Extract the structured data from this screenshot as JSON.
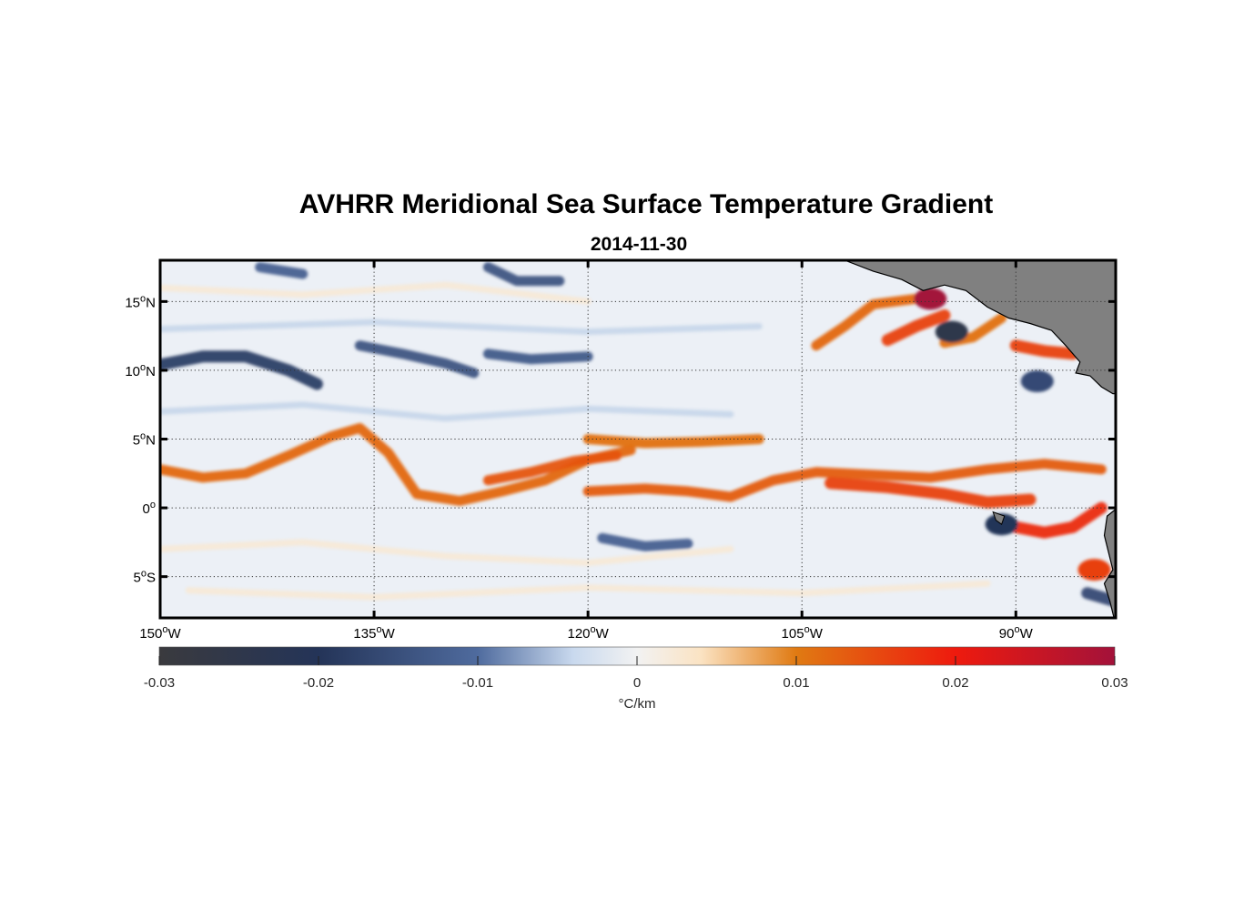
{
  "title": "AVHRR Meridional Sea Surface Temperature Gradient",
  "subtitle": "2014-11-30",
  "map": {
    "lon_range": [
      -150,
      -83
    ],
    "lat_range": [
      -8,
      18
    ],
    "grid": true,
    "land_color": "#808080",
    "lon_ticks": [
      {
        "value": -150,
        "num": "150",
        "hemi": "W"
      },
      {
        "value": -135,
        "num": "135",
        "hemi": "W"
      },
      {
        "value": -120,
        "num": "120",
        "hemi": "W"
      },
      {
        "value": -105,
        "num": "105",
        "hemi": "W"
      },
      {
        "value": -90,
        "num": "90",
        "hemi": "W"
      }
    ],
    "lat_ticks": [
      {
        "value": 15,
        "num": "15",
        "hemi": "N"
      },
      {
        "value": 10,
        "num": "10",
        "hemi": "N"
      },
      {
        "value": 5,
        "num": "5",
        "hemi": "N"
      },
      {
        "value": 0,
        "num": "0",
        "hemi": ""
      },
      {
        "value": -5,
        "num": "5",
        "hemi": "S"
      }
    ],
    "degree_symbol": "o"
  },
  "colorbar": {
    "range": [
      -0.03,
      0.03
    ],
    "ticks": [
      {
        "value": -0.03,
        "label": "-0.03"
      },
      {
        "value": -0.02,
        "label": "-0.02"
      },
      {
        "value": -0.01,
        "label": "-0.01"
      },
      {
        "value": 0,
        "label": "0"
      },
      {
        "value": 0.01,
        "label": "0.01"
      },
      {
        "value": 0.02,
        "label": "0.02"
      },
      {
        "value": 0.03,
        "label": "0.03"
      }
    ],
    "unit_label": "°C/km",
    "colormap": [
      {
        "v": -0.03,
        "c": "#3a3a3e"
      },
      {
        "v": -0.02,
        "c": "#243458"
      },
      {
        "v": -0.01,
        "c": "#4f6b9e"
      },
      {
        "v": -0.004,
        "c": "#c9d9ee"
      },
      {
        "v": 0,
        "c": "#f2f2f2"
      },
      {
        "v": 0.004,
        "c": "#fbe3c3"
      },
      {
        "v": 0.01,
        "c": "#e07a12"
      },
      {
        "v": 0.02,
        "c": "#ee1a0e"
      },
      {
        "v": 0.03,
        "c": "#a3123a"
      }
    ]
  },
  "chart_data": {
    "type": "heatmap",
    "variable": "meridional SST gradient",
    "units": "°C/km",
    "features": [
      {
        "kind": "positive_band",
        "value": 0.012,
        "path": [
          [
            -150,
            2.8
          ],
          [
            -147,
            2.2
          ],
          [
            -144,
            2.5
          ],
          [
            -141,
            3.8
          ],
          [
            -138,
            5.2
          ],
          [
            -136,
            5.8
          ],
          [
            -134,
            4.0
          ],
          [
            -132,
            1.0
          ],
          [
            -129,
            0.5
          ],
          [
            -126,
            1.2
          ],
          [
            -123,
            2.0
          ],
          [
            -120,
            3.5
          ],
          [
            -117,
            4.2
          ]
        ]
      },
      {
        "kind": "positive_band",
        "value": 0.014,
        "path": [
          [
            -127,
            2.0
          ],
          [
            -124,
            2.6
          ],
          [
            -121,
            3.4
          ],
          [
            -118,
            3.8
          ]
        ]
      },
      {
        "kind": "positive_band",
        "value": 0.013,
        "path": [
          [
            -120,
            1.2
          ],
          [
            -116,
            1.4
          ],
          [
            -113,
            1.2
          ],
          [
            -110,
            0.8
          ],
          [
            -107,
            2.0
          ],
          [
            -104,
            2.6
          ],
          [
            -100,
            2.4
          ],
          [
            -96,
            2.2
          ],
          [
            -92,
            2.8
          ],
          [
            -88,
            3.2
          ],
          [
            -84,
            2.8
          ]
        ]
      },
      {
        "kind": "positive_band",
        "value": 0.016,
        "path": [
          [
            -103,
            1.8
          ],
          [
            -99,
            1.5
          ],
          [
            -95,
            1.0
          ],
          [
            -92,
            0.4
          ],
          [
            -89,
            0.6
          ]
        ]
      },
      {
        "kind": "positive_band",
        "value": 0.018,
        "path": [
          [
            -90,
            -1.4
          ],
          [
            -88,
            -1.8
          ],
          [
            -86,
            -1.4
          ],
          [
            -84,
            0.0
          ]
        ]
      },
      {
        "kind": "positive_band",
        "value": 0.011,
        "path": [
          [
            -120,
            5.0
          ],
          [
            -116,
            4.7
          ],
          [
            -112,
            4.8
          ],
          [
            -108,
            5.0
          ]
        ]
      },
      {
        "kind": "positive_band",
        "value": 0.012,
        "path": [
          [
            -104,
            11.8
          ],
          [
            -102,
            13.2
          ],
          [
            -100,
            14.8
          ],
          [
            -97,
            15.2
          ]
        ]
      },
      {
        "kind": "positive_band",
        "value": 0.016,
        "path": [
          [
            -99,
            12.2
          ],
          [
            -97,
            13.2
          ],
          [
            -95,
            14.0
          ]
        ]
      },
      {
        "kind": "positive_band",
        "value": 0.011,
        "path": [
          [
            -95,
            12.0
          ],
          [
            -93,
            12.4
          ],
          [
            -91,
            13.8
          ]
        ]
      },
      {
        "kind": "positive_band",
        "value": 0.016,
        "path": [
          [
            -90,
            11.8
          ],
          [
            -88,
            11.4
          ],
          [
            -86,
            11.2
          ]
        ]
      },
      {
        "kind": "positive_spot",
        "value": 0.03,
        "lon": -96.0,
        "lat": 15.2
      },
      {
        "kind": "positive_spot",
        "value": 0.016,
        "lon": -84.5,
        "lat": -4.5
      },
      {
        "kind": "negative_band",
        "value": -0.018,
        "path": [
          [
            -150,
            10.4
          ],
          [
            -147,
            11.0
          ],
          [
            -144,
            11.0
          ],
          [
            -141,
            10.0
          ],
          [
            -139,
            9.0
          ]
        ]
      },
      {
        "kind": "negative_band",
        "value": -0.014,
        "path": [
          [
            -136,
            11.8
          ],
          [
            -133,
            11.2
          ],
          [
            -130,
            10.5
          ],
          [
            -128,
            9.8
          ]
        ]
      },
      {
        "kind": "negative_band",
        "value": -0.013,
        "path": [
          [
            -127,
            11.2
          ],
          [
            -124,
            10.8
          ],
          [
            -120,
            11.0
          ]
        ]
      },
      {
        "kind": "negative_band",
        "value": -0.012,
        "path": [
          [
            -143,
            17.5
          ],
          [
            -140,
            17.0
          ]
        ]
      },
      {
        "kind": "negative_band",
        "value": -0.014,
        "path": [
          [
            -127,
            17.5
          ],
          [
            -125,
            16.5
          ],
          [
            -122,
            16.5
          ]
        ]
      },
      {
        "kind": "negative_band",
        "value": -0.012,
        "path": [
          [
            -119,
            -2.2
          ],
          [
            -116,
            -2.8
          ],
          [
            -113,
            -2.6
          ]
        ]
      },
      {
        "kind": "negative_band",
        "value": -0.016,
        "path": [
          [
            -85,
            -6.2
          ],
          [
            -83,
            -6.8
          ]
        ]
      },
      {
        "kind": "negative_spot",
        "value": -0.025,
        "lon": -94.5,
        "lat": 12.8
      },
      {
        "kind": "negative_spot",
        "value": -0.016,
        "lon": -88.5,
        "lat": 9.2
      },
      {
        "kind": "negative_spot",
        "value": -0.02,
        "lon": -91.0,
        "lat": -1.2
      }
    ]
  }
}
